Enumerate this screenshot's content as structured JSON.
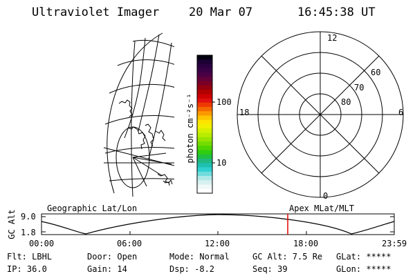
{
  "header": {
    "instrument": "Ultraviolet Imager",
    "date": "20 Mar 07",
    "time": "16:45:38 UT"
  },
  "colorbar": {
    "unit_label": "photon cm⁻²s⁻¹",
    "ticks": [
      "100",
      "10"
    ],
    "colors": [
      "#000010",
      "#1a0033",
      "#2a0040",
      "#3a0045",
      "#4a0045",
      "#62003a",
      "#7a0025",
      "#960010",
      "#b00000",
      "#cc0000",
      "#e01010",
      "#ee3a00",
      "#f56a00",
      "#fb9a00",
      "#fec400",
      "#ffe400",
      "#f0f000",
      "#d4f000",
      "#b8ec00",
      "#98e400",
      "#74dc00",
      "#4ed400",
      "#30cc10",
      "#20c040",
      "#20b880",
      "#20c0b0",
      "#30d0d0",
      "#70dcdc",
      "#b0e8e8",
      "#d8f0f0",
      "#f0f8f8",
      "#ffffff"
    ]
  },
  "polar_plot": {
    "mlt_labels": {
      "top": "12",
      "bottom": "0",
      "left": "18",
      "right": "6"
    },
    "lat_labels": [
      "60",
      "70",
      "80"
    ]
  },
  "orbit_panel": {
    "y_axis_label": "GC Alt",
    "y_ticks": [
      "9.0",
      "1.8"
    ],
    "left_title": "Geographic Lat/Lon",
    "right_title": "Apex MLat/MLT",
    "x_ticks": [
      "00:00",
      "06:00",
      "12:00",
      "18:00",
      "23:59"
    ],
    "marker_color": "#e00000"
  },
  "status": {
    "flt": "Flt: LBHL",
    "ip": "IP: 36.0",
    "door": "Door: Open",
    "gain": "Gain: 14",
    "mode": "Mode: Normal",
    "dsp": "Dsp:   -8.2",
    "gc_alt": "GC Alt: 7.5 Re",
    "seq": "Seq: 39",
    "glat": "GLat: *****",
    "glon": "GLon: *****"
  }
}
